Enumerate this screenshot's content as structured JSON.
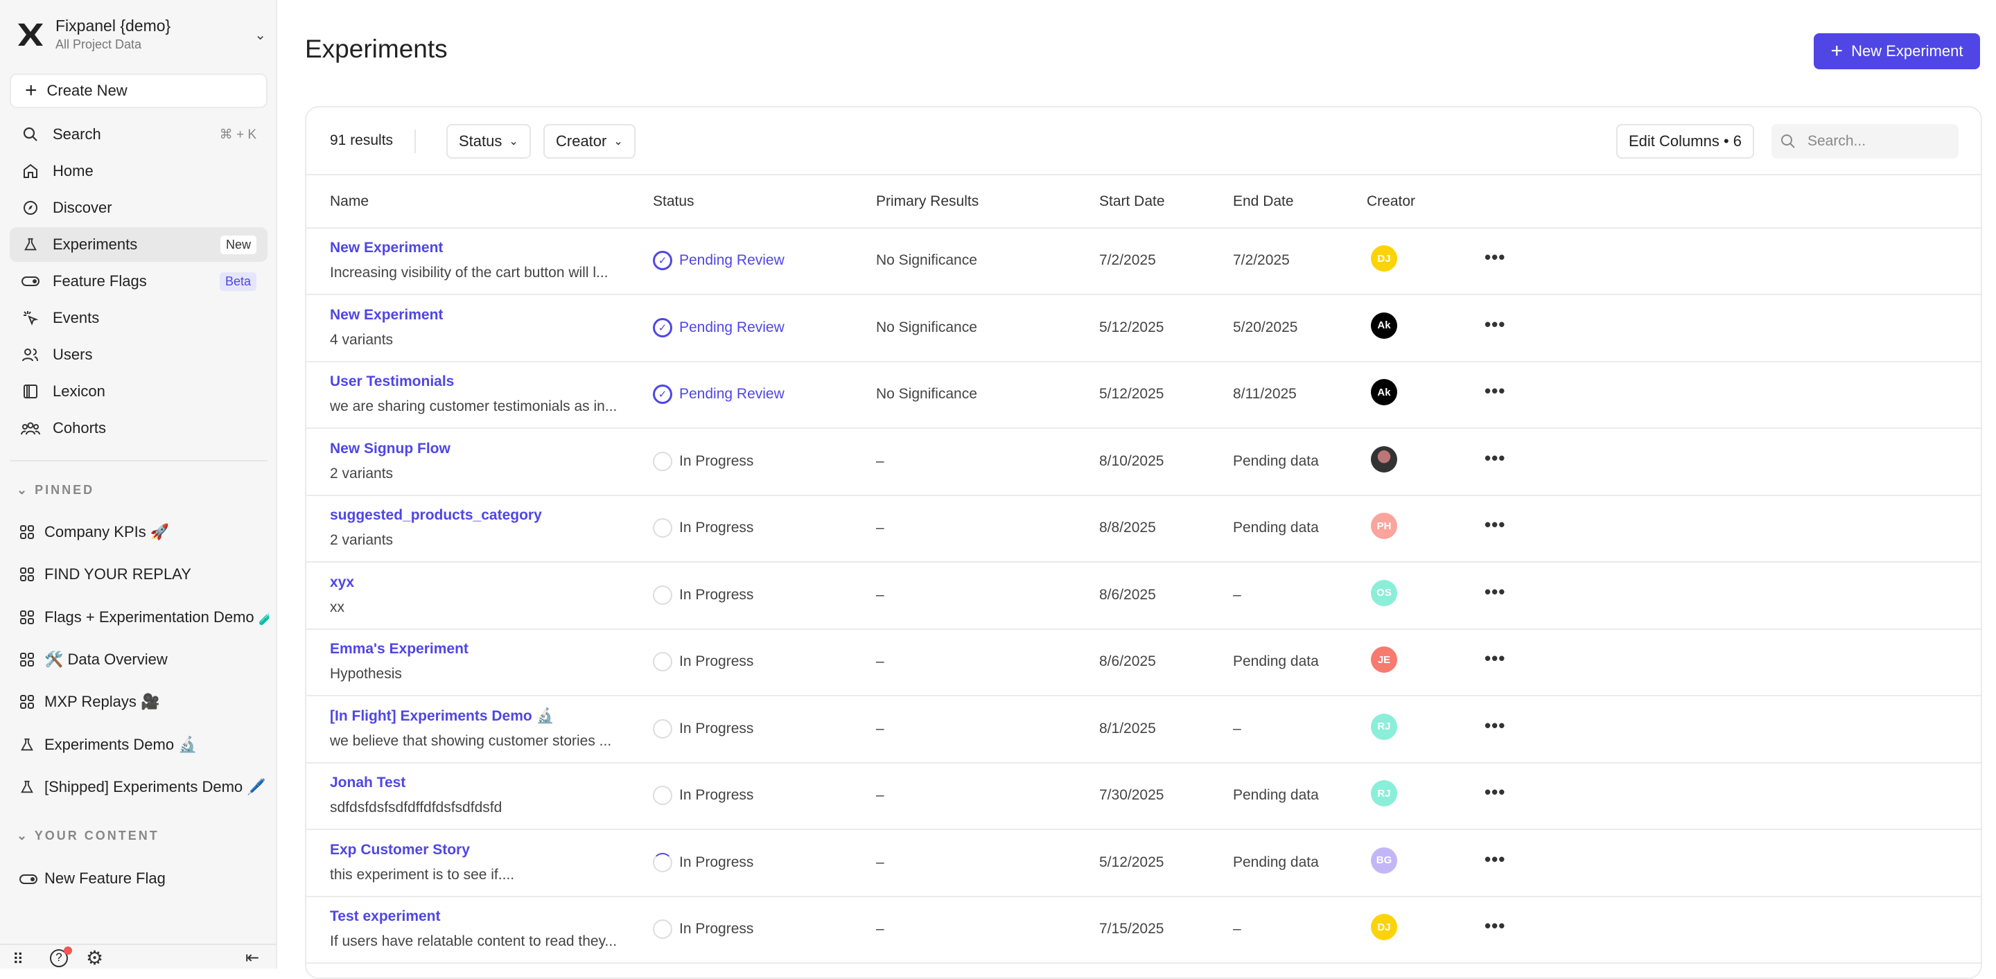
{
  "org": {
    "name": "Fixpanel {demo}",
    "subtitle": "All Project Data"
  },
  "sidebar": {
    "create_label": "Create New",
    "search": {
      "label": "Search",
      "shortcut": "⌘ + K"
    },
    "items": [
      {
        "label": "Home",
        "icon": "home-icon"
      },
      {
        "label": "Discover",
        "icon": "compass-icon"
      },
      {
        "label": "Experiments",
        "icon": "flask-icon",
        "badge": "New",
        "active": true
      },
      {
        "label": "Feature Flags",
        "icon": "toggle-icon",
        "badge": "Beta"
      },
      {
        "label": "Events",
        "icon": "click-icon"
      },
      {
        "label": "Users",
        "icon": "users-icon"
      },
      {
        "label": "Lexicon",
        "icon": "book-icon"
      },
      {
        "label": "Cohorts",
        "icon": "cohorts-icon"
      }
    ],
    "pinned_label": "PINNED",
    "pinned": [
      {
        "label": "Company KPIs 🚀",
        "icon": "dashboard-icon"
      },
      {
        "label": "FIND YOUR REPLAY",
        "icon": "dashboard-icon"
      },
      {
        "label": "Flags + Experimentation Demo 🧪",
        "icon": "dashboard-icon"
      },
      {
        "label": "🛠️ Data Overview",
        "icon": "dashboard-icon"
      },
      {
        "label": "MXP Replays 🎥",
        "icon": "dashboard-icon"
      },
      {
        "label": "Experiments Demo 🔬",
        "icon": "flask-icon"
      },
      {
        "label": "[Shipped] Experiments Demo 🖊️",
        "icon": "flask-icon"
      }
    ],
    "your_content_label": "YOUR CONTENT",
    "your_content": [
      {
        "label": "New Feature Flag",
        "icon": "toggle-icon"
      }
    ]
  },
  "header": {
    "title": "Experiments",
    "new_button": "New Experiment"
  },
  "toolbar": {
    "results": "91 results",
    "status_filter": "Status",
    "creator_filter": "Creator",
    "edit_columns": "Edit Columns • 6",
    "search_placeholder": "Search..."
  },
  "columns": [
    "Name",
    "Status",
    "Primary Results",
    "Start Date",
    "End Date",
    "Creator"
  ],
  "accent": "#4f46e5",
  "rows": [
    {
      "name": "New Experiment",
      "desc": "Increasing visibility of the cart button will l...",
      "status": "Pending Review",
      "status_type": "pending",
      "primary": "No Significance",
      "start": "7/2/2025",
      "end": "7/2/2025",
      "creator": "DJ",
      "color": "#fcd307"
    },
    {
      "name": "New Experiment",
      "desc": "4 variants",
      "status": "Pending Review",
      "status_type": "pending",
      "primary": "No Significance",
      "start": "5/12/2025",
      "end": "5/20/2025",
      "creator": "Ak",
      "color": "#000000"
    },
    {
      "name": "User Testimonials",
      "desc": "we are sharing customer testimonials as in...",
      "status": "Pending Review",
      "status_type": "pending",
      "primary": "No Significance",
      "start": "5/12/2025",
      "end": "8/11/2025",
      "creator": "Ak",
      "color": "#000000"
    },
    {
      "name": "New Signup Flow",
      "desc": "2 variants",
      "status": "In Progress",
      "status_type": "progress",
      "primary": "–",
      "start": "8/10/2025",
      "end": "Pending data",
      "creator": "",
      "color": "#555555"
    },
    {
      "name": "suggested_products_category",
      "desc": "2 variants",
      "status": "In Progress",
      "status_type": "progress",
      "primary": "–",
      "start": "8/8/2025",
      "end": "Pending data",
      "creator": "PH",
      "color": "#f9a49c"
    },
    {
      "name": "xyx",
      "desc": "xx",
      "status": "In Progress",
      "status_type": "progress",
      "primary": "–",
      "start": "8/6/2025",
      "end": "–",
      "creator": "OS",
      "color": "#8aeed9"
    },
    {
      "name": "Emma's Experiment",
      "desc": "Hypothesis",
      "status": "In Progress",
      "status_type": "progress",
      "primary": "–",
      "start": "8/6/2025",
      "end": "Pending data",
      "creator": "JE",
      "color": "#f77a6e"
    },
    {
      "name": "[In Flight] Experiments Demo 🔬",
      "desc": "we believe that showing customer stories ...",
      "status": "In Progress",
      "status_type": "progress",
      "primary": "–",
      "start": "8/1/2025",
      "end": "–",
      "creator": "RJ",
      "color": "#8aeed9"
    },
    {
      "name": "Jonah Test",
      "desc": "sdfdsfdsfsdfdffdfdsfsdfdsfd",
      "status": "In Progress",
      "status_type": "progress",
      "primary": "–",
      "start": "7/30/2025",
      "end": "Pending data",
      "creator": "RJ",
      "color": "#8aeed9"
    },
    {
      "name": "Exp Customer Story",
      "desc": "this experiment is to see if....",
      "status": "In Progress",
      "status_type": "spinner",
      "primary": "–",
      "start": "5/12/2025",
      "end": "Pending data",
      "creator": "BG",
      "color": "#c3b6f7"
    },
    {
      "name": "Test experiment",
      "desc": "If users have relatable content to read they...",
      "status": "In Progress",
      "status_type": "progress",
      "primary": "–",
      "start": "7/15/2025",
      "end": "–",
      "creator": "DJ",
      "color": "#fcd307"
    }
  ]
}
